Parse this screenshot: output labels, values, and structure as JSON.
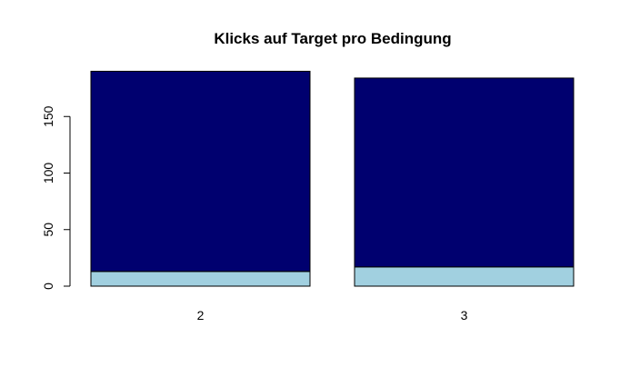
{
  "chart_data": {
    "type": "bar",
    "stacked": true,
    "title": "Klicks auf Target pro Bedingung",
    "xlabel": "",
    "ylabel": "",
    "categories": [
      "2",
      "3"
    ],
    "series": [
      {
        "values": [
          13,
          17
        ],
        "color": "#a1d0e0"
      },
      {
        "values": [
          177,
          167
        ],
        "color": "#00006f"
      }
    ],
    "ylim": [
      0,
      190
    ],
    "yticks": [
      0,
      50,
      100,
      150
    ],
    "ytick_labels": [
      "0",
      "50",
      "100",
      "150"
    ],
    "grid": false,
    "legend": "none",
    "bar_border_color": "#000000"
  }
}
